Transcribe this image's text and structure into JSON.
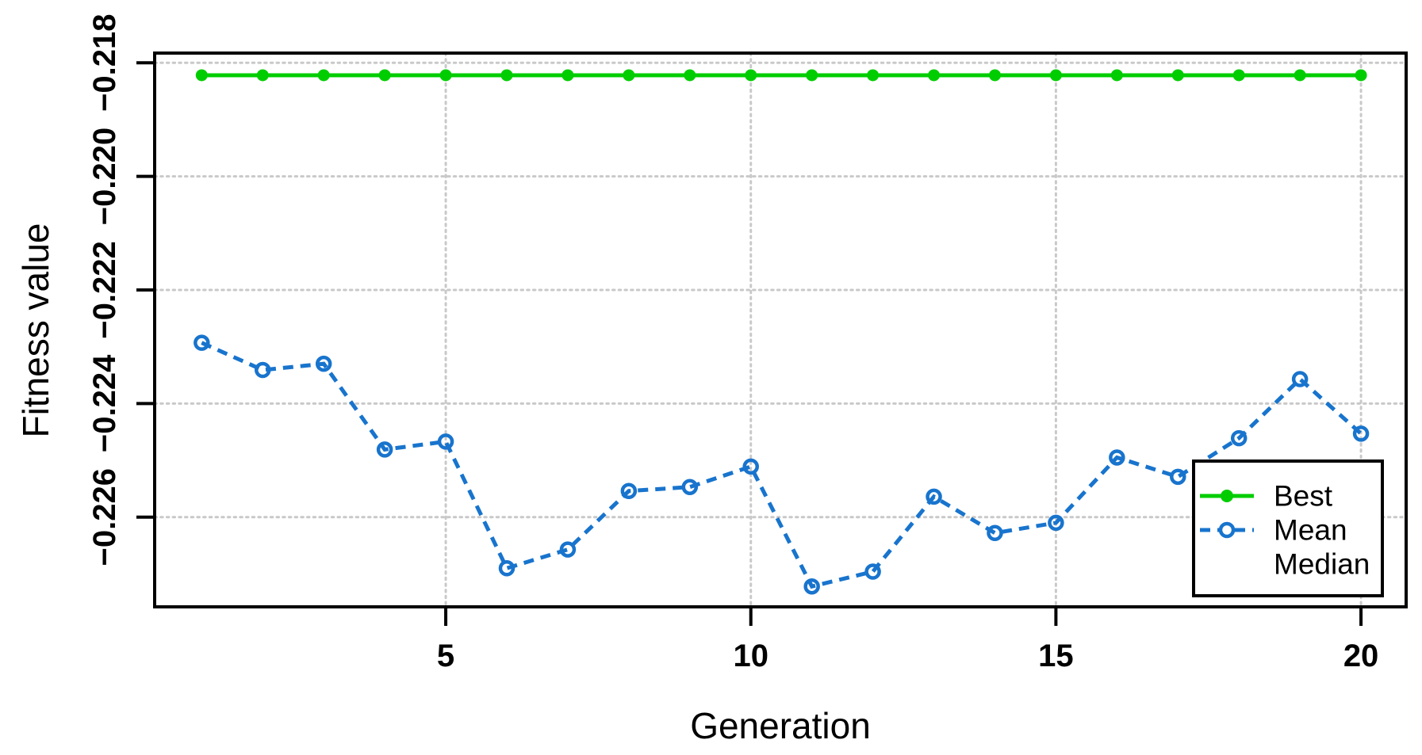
{
  "chart_data": {
    "type": "line",
    "title": "",
    "xlabel": "Generation",
    "ylabel": "Fitness value",
    "x": [
      1,
      2,
      3,
      4,
      5,
      6,
      7,
      8,
      9,
      10,
      11,
      12,
      13,
      14,
      15,
      16,
      17,
      18,
      19,
      20
    ],
    "series": [
      {
        "name": "Best",
        "color": "#00CD00",
        "line_style": "solid",
        "marker": "filled-circle",
        "values": [
          -0.21822,
          -0.21822,
          -0.21822,
          -0.21822,
          -0.21822,
          -0.21822,
          -0.21822,
          -0.21822,
          -0.21822,
          -0.21822,
          -0.21822,
          -0.21822,
          -0.21822,
          -0.21822,
          -0.21822,
          -0.21822,
          -0.21822,
          -0.21822,
          -0.21822,
          -0.21822
        ]
      },
      {
        "name": "Mean",
        "color": "#1874CD",
        "line_style": "dashed",
        "marker": "open-circle",
        "values": [
          -0.22293,
          -0.22341,
          -0.2233,
          -0.22481,
          -0.22467,
          -0.2269,
          -0.22657,
          -0.22554,
          -0.22547,
          -0.22511,
          -0.22722,
          -0.22696,
          -0.22564,
          -0.22628,
          -0.2261,
          -0.22495,
          -0.22529,
          -0.22461,
          -0.22357,
          -0.22453
        ]
      },
      {
        "name": "Median",
        "color": null,
        "line_style": "none",
        "marker": "none",
        "values": []
      }
    ],
    "xticks": {
      "values": [
        5,
        10,
        15,
        20
      ],
      "labels": [
        "5",
        "10",
        "15",
        "20"
      ]
    },
    "yticks": {
      "values": [
        -0.218,
        -0.22,
        -0.222,
        -0.224,
        -0.226
      ],
      "labels": [
        "−0.218",
        "−0.220",
        "−0.222",
        "−0.224",
        "−0.226"
      ]
    },
    "xlim": [
      0.229,
      20.74
    ],
    "ylim": [
      -0.22758,
      -0.21783
    ],
    "grid": true,
    "grid_style": "dotted",
    "legend": {
      "position": "bottom-right",
      "entries": [
        "Best",
        "Mean",
        "Median"
      ]
    },
    "colors": {
      "grid": "#C9C9C9",
      "axis": "#000000",
      "background": "#FFFFFF"
    }
  }
}
